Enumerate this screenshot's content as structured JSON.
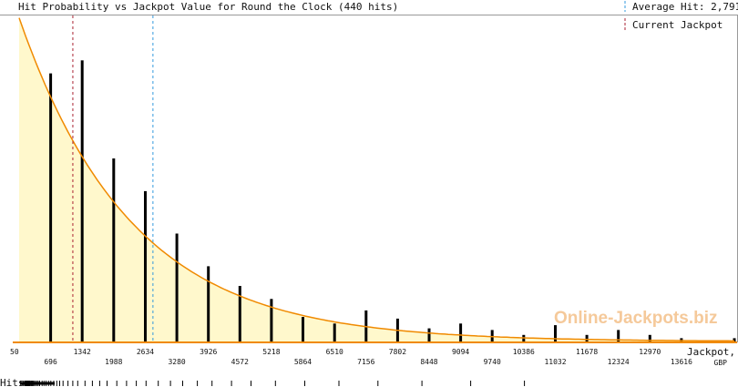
{
  "chart_data": {
    "type": "bar",
    "title": "Hit Probability vs Jackpot Value for Round the Clock (440 hits)",
    "xlabel": "Jackpot, GBP",
    "xlabel_line1": "Jackpot,",
    "xlabel_line2": "GBP",
    "xlim": [
      50,
      14700
    ],
    "tick_labels": [
      "50",
      "696",
      "1342",
      "1988",
      "2634",
      "3280",
      "3926",
      "4572",
      "5218",
      "5864",
      "6510",
      "7156",
      "7802",
      "8448",
      "9094",
      "9740",
      "10386",
      "11032",
      "11678",
      "12324",
      "12970",
      "13616"
    ],
    "x": [
      696,
      1342,
      1988,
      2634,
      3280,
      3926,
      4572,
      5218,
      5864,
      6510,
      7156,
      7802,
      8448,
      9094,
      9740,
      10386,
      11032,
      11678,
      12324,
      12970,
      13616,
      14700
    ],
    "values": [
      82,
      86,
      56,
      46,
      33,
      23,
      17,
      13,
      7.5,
      5.5,
      9.5,
      7,
      4,
      5.5,
      3.5,
      2,
      5,
      2,
      3.5,
      2,
      1,
      1
    ],
    "value_max": 100,
    "curve": {
      "a": 99,
      "k": 0.000434
    },
    "average_hit": 2791,
    "average_hit_label": "Average Hit: 2,791",
    "current_jackpot": 1150,
    "current_jackpot_label": "Current Jackpot",
    "hits_label": "Hits",
    "hit_marks": [
      85,
      130,
      160,
      175,
      190,
      205,
      215,
      225,
      235,
      245,
      255,
      270,
      290,
      310,
      330,
      350,
      380,
      410,
      440,
      470,
      520,
      560,
      600,
      650,
      700,
      760,
      820,
      880,
      950,
      1050,
      1150,
      1250,
      1400,
      1550,
      1700,
      1850,
      2050,
      2250,
      2450,
      2650,
      2900,
      3150,
      3400,
      3700,
      4000,
      4400,
      4800,
      5300,
      5900,
      6600,
      7400,
      8300,
      9300,
      10400
    ]
  },
  "colors": {
    "area_fill": "#fff8cc",
    "curve": "#f08a00",
    "bars": "#000000",
    "average_line": "#3399dd",
    "current_line": "#aa2233"
  },
  "watermark": "Online-Jackpots.biz"
}
